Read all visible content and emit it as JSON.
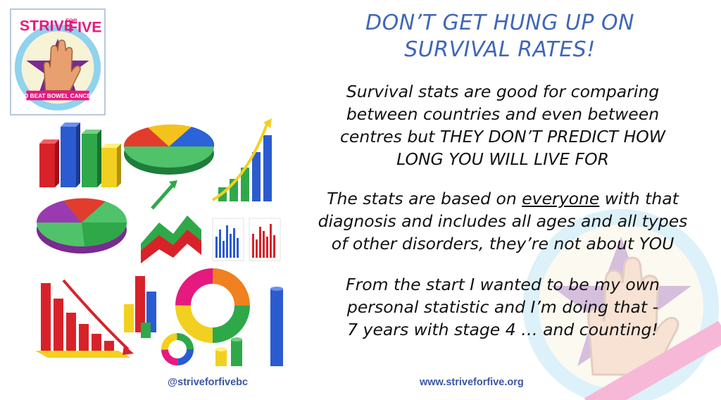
{
  "logo": {
    "top_text": "STRIVE",
    "for_text": "FOR",
    "five_text": "FIVE",
    "bottom_text": "TO BEAT BOWEL CANCER"
  },
  "headline": {
    "line1": "DON’T GET HUNG UP ON",
    "line2": "SURVIVAL RATES!"
  },
  "paragraph1": {
    "line1": "Survival stats are good for comparing",
    "line2": "between countries and even between",
    "line3": "centres but THEY DON’T PREDICT HOW",
    "line4": "LONG YOU WILL LIVE FOR"
  },
  "paragraph2": {
    "line1_before": "The stats are based on ",
    "line1_underlined": "everyone",
    "line1_after": " with that",
    "line2": "diagnosis and includes all ages and all types",
    "line3": "of other disorders, they’re not about YOU"
  },
  "paragraph3": {
    "line1": "From the start I wanted to be my own",
    "line2": "personal statistic and I’m doing that -",
    "line3": "7 years with stage 4 … and counting!"
  },
  "footer": {
    "twitter": "@striveforfivebc",
    "website": "www.striveforfive.org"
  },
  "colors": {
    "headline": "#3f66b8",
    "body_text": "#111111",
    "footer": "#3a55a5",
    "logo_pink": "#e6197f",
    "logo_purple": "#6a2a8c",
    "logo_ring": "#8fd3ee"
  },
  "icons": [
    "logo-hand-star-icon",
    "watermark-hand-star-icon",
    "chart-clipart-icon"
  ]
}
